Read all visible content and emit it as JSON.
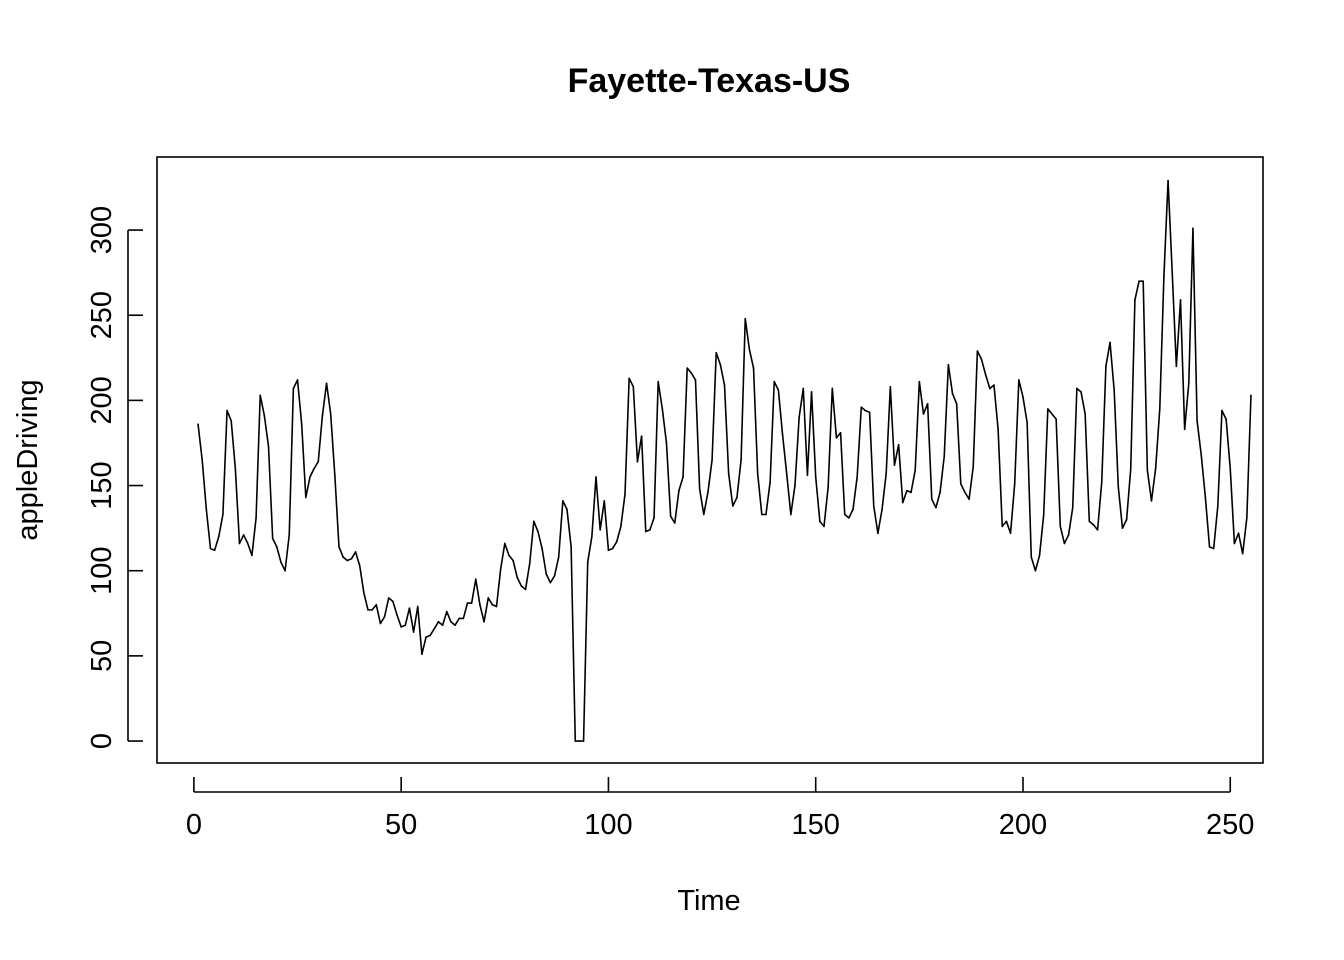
{
  "chart_data": {
    "type": "line",
    "title": "Fayette-Texas-US",
    "xlabel": "Time",
    "ylabel": "appleDriving",
    "xlim": [
      -8.9,
      257.9
    ],
    "ylim": [
      -12.9,
      342.9
    ],
    "xticks": [
      0,
      50,
      100,
      150,
      200,
      250
    ],
    "yticks": [
      0,
      50,
      100,
      150,
      200,
      250,
      300
    ],
    "grid": false,
    "legend": "none",
    "line_color": "#000000",
    "series": [
      {
        "x_start": 1,
        "x_step": 1,
        "values": [
          186,
          165,
          136,
          113,
          112,
          120,
          133,
          194,
          188,
          160,
          116,
          121,
          116,
          109,
          131,
          203,
          191,
          173,
          119,
          114,
          105,
          100,
          121,
          207,
          212,
          186,
          143,
          155,
          160,
          164,
          191,
          210,
          192,
          156,
          114,
          108,
          106,
          107,
          111,
          103,
          87,
          77,
          77,
          80,
          69,
          73,
          84,
          82,
          74,
          67,
          68,
          78,
          64,
          79,
          51,
          61,
          62,
          66,
          70,
          68,
          76,
          70,
          68,
          72,
          72,
          81,
          81,
          95,
          80,
          70,
          84,
          80,
          79,
          101,
          116,
          109,
          106,
          96,
          91,
          89,
          104,
          129,
          123,
          113,
          98,
          93,
          97,
          108,
          141,
          136,
          114,
          0,
          0,
          0,
          105,
          120,
          155,
          124,
          141,
          112,
          113,
          117,
          126,
          145,
          213,
          208,
          164,
          179,
          123,
          124,
          131,
          211,
          195,
          175,
          132,
          128,
          147,
          155,
          219,
          216,
          212,
          148,
          133,
          146,
          165,
          228,
          221,
          209,
          157,
          138,
          143,
          165,
          248,
          230,
          219,
          157,
          133,
          133,
          152,
          211,
          206,
          180,
          157,
          133,
          150,
          190,
          207,
          156,
          205,
          155,
          129,
          126,
          149,
          207,
          178,
          181,
          133,
          131,
          136,
          155,
          196,
          194,
          193,
          138,
          122,
          136,
          157,
          208,
          162,
          174,
          140,
          147,
          146,
          159,
          211,
          192,
          198,
          142,
          137,
          146,
          167,
          221,
          204,
          198,
          151,
          146,
          142,
          161,
          229,
          224,
          215,
          207,
          209,
          183,
          126,
          129,
          122,
          151,
          212,
          202,
          187,
          108,
          100,
          109,
          133,
          195,
          192,
          189,
          126,
          116,
          121,
          137,
          207,
          205,
          192,
          129,
          127,
          124,
          152,
          220,
          234,
          206,
          149,
          125,
          130,
          160,
          259,
          270,
          270,
          159,
          141,
          160,
          195,
          273,
          329,
          275,
          220,
          259,
          183,
          210,
          301,
          188,
          168,
          143,
          114,
          113,
          138,
          194,
          189,
          160,
          116,
          122,
          110,
          131,
          203
        ]
      }
    ]
  }
}
